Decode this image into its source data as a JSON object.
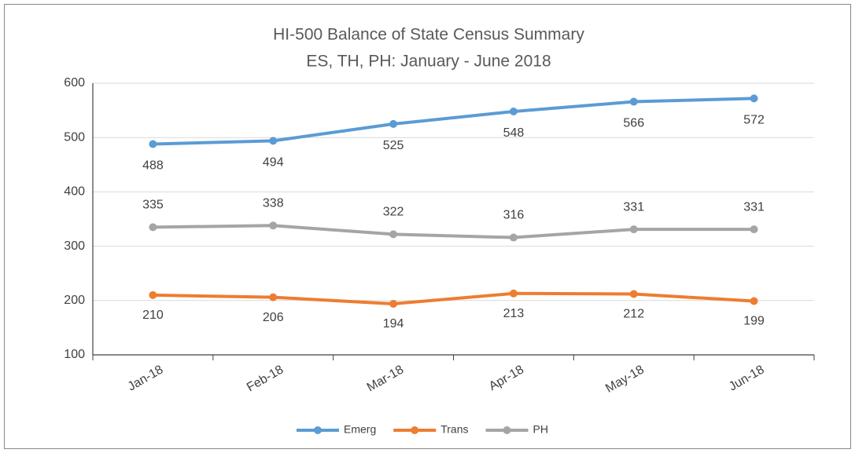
{
  "chart_data": {
    "type": "line",
    "title": "HI-500 Balance of State Census Summary",
    "subtitle": "ES, TH, PH: January - June 2018",
    "categories": [
      "Jan-18",
      "Feb-18",
      "Mar-18",
      "Apr-18",
      "May-18",
      "Jun-18"
    ],
    "series": [
      {
        "name": "Emerg",
        "color": "#5b9bd5",
        "values": [
          488,
          494,
          525,
          548,
          566,
          572
        ]
      },
      {
        "name": "Trans",
        "color": "#ed7d31",
        "values": [
          210,
          206,
          194,
          213,
          212,
          199
        ]
      },
      {
        "name": "PH",
        "color": "#a5a5a5",
        "values": [
          335,
          338,
          322,
          316,
          331,
          331
        ]
      }
    ],
    "ylim": [
      100,
      600
    ],
    "yticks": [
      100,
      200,
      300,
      400,
      500,
      600
    ],
    "grid": true,
    "legend": "bottom"
  }
}
